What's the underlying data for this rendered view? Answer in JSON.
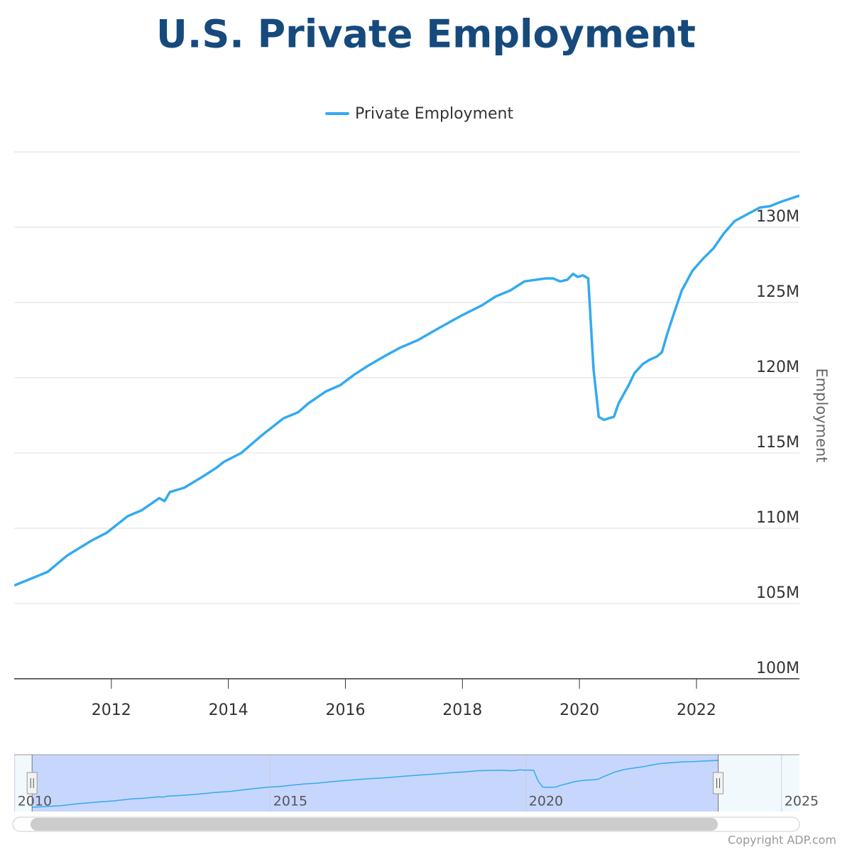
{
  "chart_data": {
    "type": "line",
    "title": "U.S. Private Employment",
    "y_axis_label": "Employment",
    "series": [
      {
        "name": "Private Employment",
        "color": "#33aaf0",
        "x": [
          2010.34,
          2010.91,
          2011.25,
          2011.67,
          2011.92,
          2012.28,
          2012.52,
          2012.82,
          2012.91,
          2013.0,
          2013.25,
          2013.55,
          2013.79,
          2013.92,
          2014.22,
          2014.58,
          2014.94,
          2015.19,
          2015.37,
          2015.67,
          2015.91,
          2016.15,
          2016.39,
          2016.7,
          2016.94,
          2017.24,
          2017.6,
          2017.97,
          2018.33,
          2018.57,
          2018.82,
          2019.06,
          2019.42,
          2019.55,
          2019.67,
          2019.79,
          2019.89,
          2019.97,
          2020.06,
          2020.15,
          2020.24,
          2020.33,
          2020.42,
          2020.5,
          2020.59,
          2020.67,
          2020.84,
          2020.94,
          2021.08,
          2021.2,
          2021.32,
          2021.41,
          2021.5,
          2021.6,
          2021.75,
          2021.93,
          2022.11,
          2022.29,
          2022.47,
          2022.65,
          2022.84,
          2023.08,
          2023.26,
          2023.45,
          2023.76
        ],
        "values": [
          106.2,
          107.1,
          108.2,
          109.2,
          109.7,
          110.8,
          111.2,
          112.0,
          111.8,
          112.4,
          112.7,
          113.4,
          114.0,
          114.4,
          115.0,
          116.2,
          117.3,
          117.7,
          118.3,
          119.1,
          119.5,
          120.2,
          120.8,
          121.5,
          122.0,
          122.5,
          123.3,
          124.1,
          124.8,
          125.4,
          125.8,
          126.4,
          126.6,
          126.6,
          126.4,
          126.5,
          126.9,
          126.7,
          126.8,
          126.6,
          120.6,
          117.4,
          117.2,
          117.3,
          117.4,
          118.3,
          119.5,
          120.3,
          120.9,
          121.2,
          121.4,
          121.7,
          122.9,
          124.1,
          125.8,
          127.1,
          127.9,
          128.6,
          129.6,
          130.4,
          130.8,
          131.3,
          131.4,
          131.7,
          132.1
        ]
      }
    ],
    "xlim": [
      2010.34,
      2023.76
    ],
    "xticks": [
      2012,
      2014,
      2016,
      2018,
      2020,
      2022
    ],
    "ylim": [
      100,
      135
    ],
    "yticks": [
      {
        "value": 100,
        "label": "100M"
      },
      {
        "value": 105,
        "label": "105M"
      },
      {
        "value": 110,
        "label": "110M"
      },
      {
        "value": 115,
        "label": "115M"
      },
      {
        "value": 120,
        "label": "120M"
      },
      {
        "value": 125,
        "label": "125M"
      },
      {
        "value": 130,
        "label": "130M"
      }
    ],
    "grid": true,
    "navigator": {
      "xlim": [
        2009.99,
        2025.35
      ],
      "xticks": [
        2010,
        2015,
        2020,
        2025
      ]
    },
    "credit": "Copyright ADP.com"
  }
}
